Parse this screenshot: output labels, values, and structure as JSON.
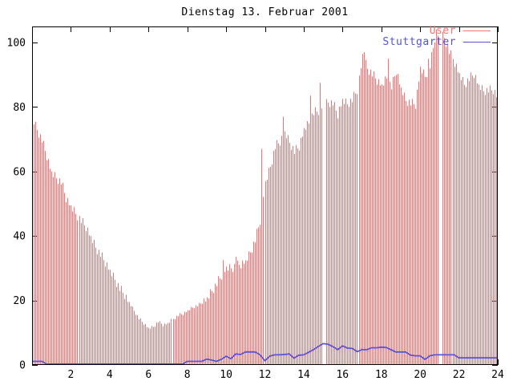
{
  "window": {
    "kind": "gnuplot-chart",
    "background": "#ffffff"
  },
  "chart_data": {
    "type": "bar",
    "title": "Dienstag 13. Februar 2001",
    "xlabel": "",
    "ylabel": "",
    "x_unit": "hour-of-day",
    "x_range": [
      0,
      24
    ],
    "y_range": [
      0,
      105
    ],
    "xticks": [
      2,
      4,
      6,
      8,
      10,
      12,
      14,
      16,
      18,
      20,
      22,
      24
    ],
    "yticks": [
      0,
      20,
      40,
      60,
      80,
      100
    ],
    "grid": false,
    "legend_position": "top-right-inside",
    "sample_interval_minutes": 5,
    "anchor_interval_minutes": 15,
    "series": [
      {
        "name": "User",
        "style": "impulses",
        "color": "#f87070",
        "values_15min": [
          77,
          73.5,
          70,
          65,
          60,
          58.5,
          57,
          52,
          49.5,
          47.5,
          45,
          43,
          40,
          37,
          34.5,
          32,
          29.5,
          27,
          24,
          22,
          19.5,
          17,
          14.5,
          13,
          11.5,
          12,
          13.5,
          12.5,
          13,
          14.5,
          15.5,
          16,
          17,
          18,
          18.5,
          19.5,
          21,
          23.5,
          25.5,
          28,
          30.5,
          30.5,
          31,
          31.5,
          32.5,
          35.5,
          39,
          45,
          57,
          62,
          68,
          69.5,
          72.5,
          69.5,
          66.5,
          68,
          73.5,
          75.5,
          78.5,
          79,
          81,
          82,
          81.5,
          78,
          82.5,
          81.5,
          82.5,
          85.5,
          96.5,
          92.5,
          90.5,
          88.5,
          87,
          89.5,
          86.5,
          91.5,
          86,
          82.5,
          81.5,
          81,
          92.5,
          90,
          93,
          101.5,
          103.5,
          102,
          97.5,
          94,
          90.5,
          87.5,
          89,
          90.5,
          87,
          85.5,
          85.5,
          85.5,
          83
        ],
        "spike_overrides_5min": {
          "118": 32.5,
          "126": 33.5,
          "142": 67,
          "155": 77,
          "172": 83.5,
          "178": 87.5,
          "205": 97,
          "220": 95,
          "245": 95,
          "250": 104
        },
        "missing_5min_idx": [
          180,
          181,
          252,
          253
        ],
        "jitter_pattern": [
          0,
          -1.2,
          0.8,
          -0.6,
          -1.8,
          0.4,
          -1,
          1.2,
          -0.3,
          -1.5,
          0.6,
          -0.8
        ]
      },
      {
        "name": "Stuttgarter",
        "style": "line",
        "color": "#5353d6",
        "values_15min": [
          1,
          1,
          1,
          0.15,
          0.15,
          0.15,
          0.15,
          0.15,
          0.15,
          0.15,
          0.15,
          0.15,
          0.15,
          0.15,
          0.15,
          0.15,
          0.15,
          0.15,
          0.15,
          0.15,
          0.15,
          0.15,
          0.15,
          0.15,
          0.15,
          0.15,
          0.15,
          0.15,
          0.15,
          0.15,
          0.15,
          0.15,
          1,
          1,
          1,
          1,
          1.7,
          1.4,
          1,
          1.6,
          2.6,
          1.8,
          3.3,
          3.1,
          3.9,
          3.9,
          3.9,
          3,
          1.2,
          2.6,
          3,
          3,
          3.1,
          3.3,
          2,
          2.9,
          3,
          3.8,
          4.6,
          5.6,
          6.5,
          6.3,
          5.6,
          4.6,
          5.8,
          5.1,
          5,
          4,
          4.6,
          4.6,
          5.2,
          5.2,
          5.4,
          5.3,
          4.6,
          3.9,
          3.9,
          3.9,
          2.9,
          2.7,
          2.7,
          1.6,
          2.7,
          3,
          3,
          3,
          3,
          3,
          2.1,
          2.1,
          2.1,
          2.1,
          2.1,
          2.1,
          2.1,
          2.1,
          2.1
        ]
      }
    ],
    "axis_color": "#000000",
    "tick_label_color": "#000000"
  }
}
